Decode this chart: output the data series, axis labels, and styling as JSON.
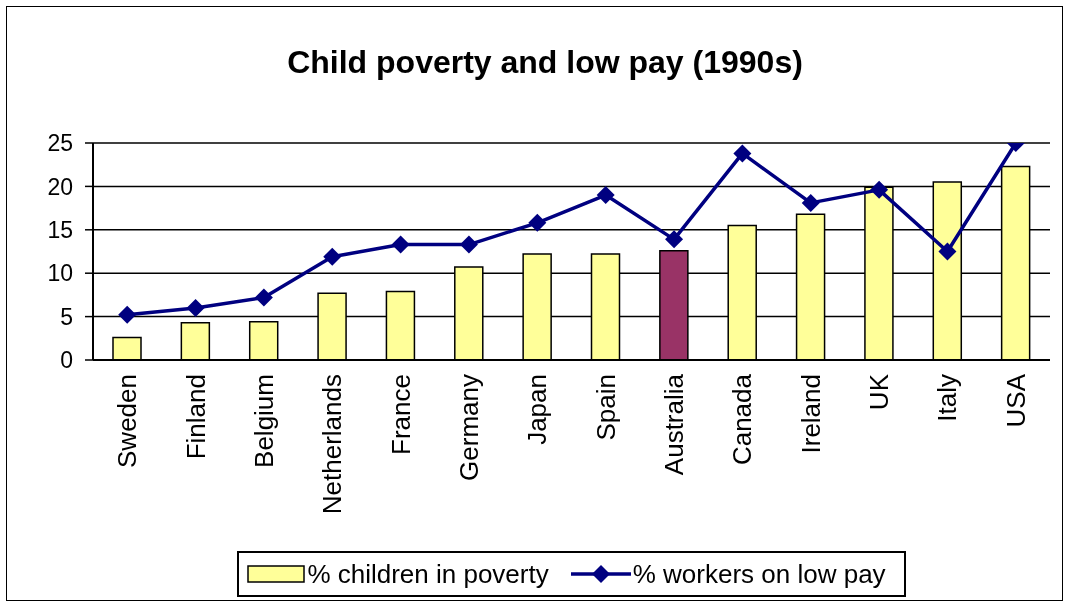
{
  "chart_data": {
    "type": "bar",
    "title": "Child poverty and low pay (1990s)",
    "categories": [
      "Sweden",
      "Finland",
      "Belgium",
      "Netherlands",
      "France",
      "Germany",
      "Japan",
      "Spain",
      "Australia",
      "Canada",
      "Ireland",
      "UK",
      "Italy",
      "USA"
    ],
    "series": [
      {
        "name": "% children in poverty",
        "color": "#ffff99",
        "colors": [
          "#ffff99",
          "#ffff99",
          "#ffff99",
          "#ffff99",
          "#ffff99",
          "#ffff99",
          "#ffff99",
          "#ffff99",
          "#993366",
          "#ffff99",
          "#ffff99",
          "#ffff99",
          "#ffff99",
          "#ffff99"
        ],
        "values": [
          2.6,
          4.3,
          4.4,
          7.7,
          7.9,
          10.7,
          12.2,
          12.2,
          12.6,
          15.5,
          16.8,
          19.9,
          20.5,
          22.3
        ]
      },
      {
        "name": "% workers on low pay",
        "type": "line",
        "color": "#000080",
        "values": [
          5.2,
          6.0,
          7.2,
          11.9,
          13.3,
          13.3,
          15.8,
          19.0,
          13.9,
          23.8,
          18.1,
          19.6,
          12.5,
          25.0
        ]
      }
    ],
    "ylim": [
      0,
      25
    ],
    "yticks": [
      0,
      5,
      10,
      15,
      20,
      25
    ],
    "grid": "y",
    "legend": "bottom",
    "marker": "diamond"
  }
}
